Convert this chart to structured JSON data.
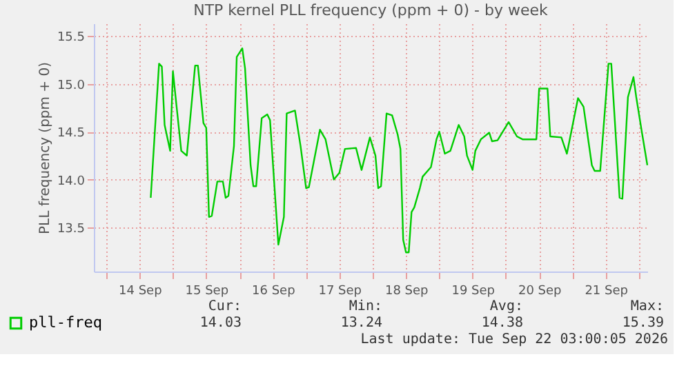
{
  "chart_data": {
    "type": "line",
    "title": "NTP kernel PLL frequency (ppm + 0) - by week",
    "ylabel": "PLL frequency (ppm + 0)",
    "xlim": [
      "2026-09-13T19:30",
      "2026-09-22T03:00"
    ],
    "xticks": [
      {
        "value": "2026-09-14T00:00",
        "label": null
      },
      {
        "value": "2026-09-14T12:00",
        "label": "14 Sep"
      },
      {
        "value": "2026-09-15T00:00",
        "label": null
      },
      {
        "value": "2026-09-15T12:00",
        "label": "15 Sep"
      },
      {
        "value": "2026-09-16T00:00",
        "label": null
      },
      {
        "value": "2026-09-16T12:00",
        "label": "16 Sep"
      },
      {
        "value": "2026-09-17T00:00",
        "label": null
      },
      {
        "value": "2026-09-17T12:00",
        "label": "17 Sep"
      },
      {
        "value": "2026-09-18T00:00",
        "label": null
      },
      {
        "value": "2026-09-18T12:00",
        "label": "18 Sep"
      },
      {
        "value": "2026-09-19T00:00",
        "label": null
      },
      {
        "value": "2026-09-19T12:00",
        "label": "19 Sep"
      },
      {
        "value": "2026-09-20T00:00",
        "label": null
      },
      {
        "value": "2026-09-20T12:00",
        "label": "20 Sep"
      },
      {
        "value": "2026-09-21T00:00",
        "label": null
      },
      {
        "value": "2026-09-21T12:00",
        "label": "21 Sep"
      },
      {
        "value": "2026-09-22T00:00",
        "label": null
      }
    ],
    "ylim": [
      13.04,
      15.63
    ],
    "yticks": [
      13.5,
      {
        "value": 14,
        "label": "14.0"
      },
      14.5,
      {
        "value": 15,
        "label": "15.0"
      },
      15.5
    ],
    "grid": true,
    "legend": "bottom",
    "annotations": [
      "Cur:",
      "14.03",
      "Min:",
      "13.24",
      "Avg:",
      "14.38",
      "Max:",
      "15.39",
      "Last update: Tue Sep 22 03:00:05 2026"
    ],
    "series": [
      {
        "name": "pll-freq",
        "color": "#00cc00",
        "x": [
          "2026-09-14T16:00",
          "2026-09-14T19:00",
          "2026-09-14T20:00",
          "2026-09-14T21:00",
          "2026-09-14T23:00",
          "2026-09-15T00:00",
          "2026-09-15T01:00",
          "2026-09-15T03:00",
          "2026-09-15T05:00",
          "2026-09-15T08:00",
          "2026-09-15T09:00",
          "2026-09-15T11:00",
          "2026-09-15T12:00",
          "2026-09-15T13:00",
          "2026-09-15T14:00",
          "2026-09-15T16:00",
          "2026-09-15T18:00",
          "2026-09-15T19:00",
          "2026-09-15T20:00",
          "2026-09-15T22:00",
          "2026-09-15T23:00",
          "2026-09-16T01:00",
          "2026-09-16T02:00",
          "2026-09-16T04:00",
          "2026-09-16T05:00",
          "2026-09-16T06:00",
          "2026-09-16T08:00",
          "2026-09-16T10:00",
          "2026-09-16T11:00",
          "2026-09-16T14:00",
          "2026-09-16T16:00",
          "2026-09-16T17:00",
          "2026-09-16T20:00",
          "2026-09-16T22:00",
          "2026-09-17T00:00",
          "2026-09-17T01:00",
          "2026-09-17T05:00",
          "2026-09-17T07:00",
          "2026-09-17T10:00",
          "2026-09-17T12:00",
          "2026-09-17T14:00",
          "2026-09-17T18:00",
          "2026-09-17T20:00",
          "2026-09-17T23:00",
          "2026-09-18T01:00",
          "2026-09-18T02:00",
          "2026-09-18T03:00",
          "2026-09-18T05:00",
          "2026-09-18T07:00",
          "2026-09-18T09:00",
          "2026-09-18T10:00",
          "2026-09-18T11:00",
          "2026-09-18T12:00",
          "2026-09-18T13:00",
          "2026-09-18T14:00",
          "2026-09-18T15:00",
          "2026-09-18T17:00",
          "2026-09-18T18:00",
          "2026-09-18T21:00",
          "2026-09-18T23:00",
          "2026-09-19T00:00",
          "2026-09-19T02:00",
          "2026-09-19T04:00",
          "2026-09-19T07:00",
          "2026-09-19T09:00",
          "2026-09-19T10:00",
          "2026-09-19T12:00",
          "2026-09-19T13:00",
          "2026-09-19T15:00",
          "2026-09-19T18:00",
          "2026-09-19T19:00",
          "2026-09-19T21:00",
          "2026-09-20T01:00",
          "2026-09-20T04:00",
          "2026-09-20T06:00",
          "2026-09-20T11:00",
          "2026-09-20T12:00",
          "2026-09-20T15:00",
          "2026-09-20T16:00",
          "2026-09-20T20:00",
          "2026-09-20T22:00",
          "2026-09-21T02:00",
          "2026-09-21T04:00",
          "2026-09-21T07:00",
          "2026-09-21T08:00",
          "2026-09-21T10:00",
          "2026-09-21T13:00",
          "2026-09-21T14:00",
          "2026-09-21T17:00",
          "2026-09-21T18:00",
          "2026-09-21T20:00",
          "2026-09-21T22:00",
          "2026-09-21T23:00",
          "2026-09-22T01:00",
          "2026-09-22T03:00"
        ],
        "values": [
          13.81,
          15.21,
          15.18,
          14.57,
          14.3,
          15.13,
          14.85,
          14.3,
          14.25,
          15.19,
          15.19,
          14.59,
          14.54,
          13.61,
          13.62,
          13.98,
          13.98,
          13.81,
          13.83,
          14.35,
          15.28,
          15.37,
          15.16,
          14.15,
          13.93,
          13.93,
          14.64,
          14.68,
          14.62,
          13.32,
          13.61,
          14.69,
          14.72,
          14.35,
          13.91,
          13.92,
          14.52,
          14.42,
          14.0,
          14.07,
          14.32,
          14.33,
          14.1,
          14.44,
          14.25,
          13.91,
          13.93,
          14.69,
          14.67,
          14.47,
          14.32,
          13.37,
          13.24,
          13.24,
          13.66,
          13.71,
          13.91,
          14.03,
          14.13,
          14.42,
          14.5,
          14.27,
          14.3,
          14.57,
          14.45,
          14.25,
          14.1,
          14.3,
          14.42,
          14.49,
          14.4,
          14.41,
          14.6,
          14.45,
          14.42,
          14.42,
          14.95,
          14.95,
          14.45,
          14.44,
          14.27,
          14.85,
          14.76,
          14.15,
          14.09,
          14.09,
          15.21,
          15.21,
          13.81,
          13.8,
          14.86,
          15.07,
          14.86,
          14.5,
          14.15
        ]
      }
    ]
  }
}
